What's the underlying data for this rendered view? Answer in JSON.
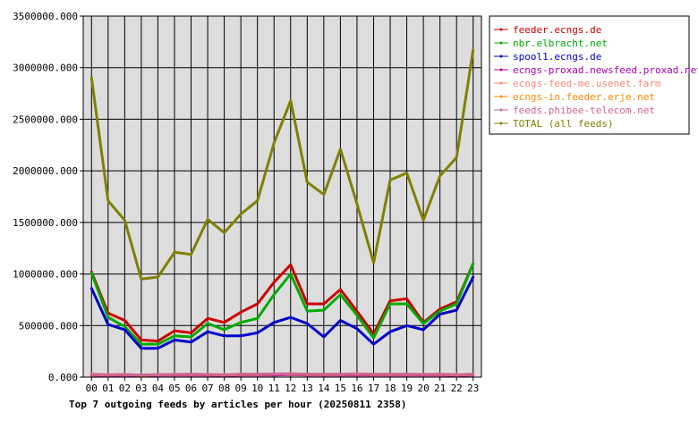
{
  "chart_data": {
    "type": "line",
    "title": "Top 7 outgoing feeds by articles per hour (20250811 2358)",
    "xlabel": "",
    "ylabel": "",
    "categories": [
      "00",
      "01",
      "02",
      "03",
      "04",
      "05",
      "06",
      "07",
      "08",
      "09",
      "10",
      "11",
      "12",
      "13",
      "14",
      "15",
      "16",
      "17",
      "18",
      "19",
      "20",
      "21",
      "22",
      "23"
    ],
    "y_tick_labels": [
      "0.000",
      "500000.000",
      "1000000.000",
      "1500000.000",
      "2000000.000",
      "2500000.000",
      "3000000.000",
      "3500000.000"
    ],
    "y_ticks": [
      0,
      500000,
      1000000,
      1500000,
      2000000,
      2500000,
      3000000,
      3500000
    ],
    "ylim": [
      0,
      3500000
    ],
    "grid": true,
    "legend_position": "right",
    "series": [
      {
        "name": "feeder.ecngs.de",
        "color": "#cc0000",
        "values": [
          1020000,
          620000,
          550000,
          360000,
          350000,
          450000,
          430000,
          570000,
          530000,
          630000,
          710000,
          920000,
          1090000,
          710000,
          710000,
          850000,
          640000,
          420000,
          740000,
          760000,
          530000,
          660000,
          730000,
          1100000
        ]
      },
      {
        "name": "nbr.elbracht.net",
        "color": "#00aa00",
        "values": [
          1010000,
          580000,
          490000,
          320000,
          320000,
          400000,
          390000,
          520000,
          460000,
          530000,
          570000,
          800000,
          1000000,
          640000,
          650000,
          800000,
          600000,
          380000,
          710000,
          710000,
          520000,
          640000,
          710000,
          1100000
        ]
      },
      {
        "name": "spool1.ecngs.de",
        "color": "#0000cc",
        "values": [
          860000,
          510000,
          460000,
          280000,
          280000,
          360000,
          340000,
          440000,
          400000,
          400000,
          430000,
          530000,
          580000,
          520000,
          390000,
          550000,
          470000,
          320000,
          440000,
          500000,
          460000,
          610000,
          650000,
          970000
        ]
      },
      {
        "name": "ecngs-proxad.newsfeed.proxad.net",
        "color": "#aa00aa",
        "values": [
          20000,
          15000,
          20000,
          12000,
          18000,
          20000,
          20000,
          20000,
          15000,
          20000,
          20000,
          20000,
          25000,
          20000,
          20000,
          20000,
          20000,
          20000,
          20000,
          20000,
          20000,
          20000,
          15000,
          20000
        ]
      },
      {
        "name": "ecngs-feed-me.usenet.farm",
        "color": "#ff8877",
        "values": [
          30000,
          25000,
          28000,
          20000,
          26000,
          28000,
          30000,
          28000,
          25000,
          30000,
          30000,
          32000,
          35000,
          30000,
          30000,
          30000,
          32000,
          30000,
          30000,
          30000,
          28000,
          30000,
          25000,
          30000
        ]
      },
      {
        "name": "ecngs-in.feeder.erje.net",
        "color": "#ff8800",
        "values": [
          25000,
          20000,
          25000,
          18000,
          22000,
          25000,
          25000,
          25000,
          20000,
          25000,
          25000,
          28000,
          30000,
          25000,
          25000,
          25000,
          28000,
          25000,
          25000,
          25000,
          25000,
          25000,
          20000,
          25000
        ]
      },
      {
        "name": "feeds.phibee-telecom.net",
        "color": "#cc6699",
        "values": [
          28000,
          22000,
          26000,
          20000,
          24000,
          26000,
          28000,
          26000,
          22000,
          28000,
          28000,
          30000,
          32000,
          28000,
          28000,
          28000,
          30000,
          28000,
          28000,
          28000,
          26000,
          28000,
          22000,
          28000
        ]
      },
      {
        "name": "TOTAL (all feeds)",
        "color": "#808000",
        "values": [
          2900000,
          1710000,
          1520000,
          950000,
          970000,
          1210000,
          1190000,
          1530000,
          1400000,
          1580000,
          1710000,
          2270000,
          2680000,
          1890000,
          1770000,
          2210000,
          1680000,
          1110000,
          1910000,
          1980000,
          1520000,
          1950000,
          2130000,
          3170000
        ]
      }
    ]
  },
  "colors": {
    "plot_background": "#dddddd",
    "grid": "#000000",
    "axis": "#000000"
  }
}
